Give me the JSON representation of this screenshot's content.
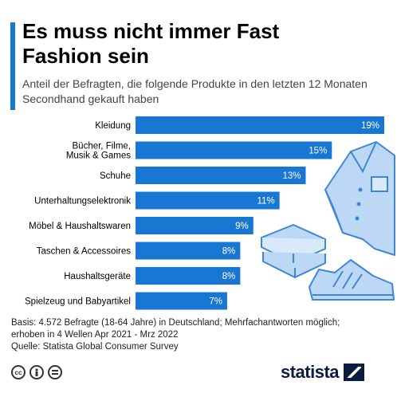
{
  "header": {
    "title": "Es muss nicht immer Fast Fashion sein",
    "subtitle": "Anteil der Befragten, die folgende Produkte in den letzten 12 Monaten Secondhand gekauft haben"
  },
  "chart_data": {
    "type": "bar",
    "orientation": "horizontal",
    "title": "Es muss nicht immer Fast Fashion sein",
    "subtitle": "Anteil der Befragten, die folgende Produkte in den letzten 12 Monaten Secondhand gekauft haben",
    "categories": [
      "Kleidung",
      "Bücher, Filme,\nMusik & Games",
      "Schuhe",
      "Unterhaltungselektronik",
      "Möbel & Haushaltswaren",
      "Taschen & Accessoires",
      "Haushaltsgeräte",
      "Spielzeug und Babyartikel"
    ],
    "values": [
      19,
      15,
      13,
      11,
      9,
      8,
      8,
      7
    ],
    "value_labels": [
      "19%",
      "15%",
      "13%",
      "11%",
      "9%",
      "8%",
      "8%",
      "7%"
    ],
    "unit": "%",
    "xlim": [
      0,
      19
    ],
    "grid": false,
    "bar_color": "#1877d2"
  },
  "footer": {
    "basis": "Basis: 4.572 Befragte (18-64 Jahre) in Deutschland; Mehrfachantworten möglich;",
    "waves": "erhoben in 4 Wellen Apr 2021 - Mrz 2022",
    "source": "Quelle: Statista Global Consumer Survey"
  },
  "brand": {
    "name": "statista"
  },
  "icons": [
    "cc-icon",
    "person-icon",
    "equals-icon",
    "shirt-icon",
    "books-icon",
    "sneaker-icon"
  ],
  "colors": {
    "accent": "#1877d2",
    "illustration": "#bcd8f4",
    "illustration_stroke": "#3f86d6",
    "brand": "#0b1e3f"
  }
}
